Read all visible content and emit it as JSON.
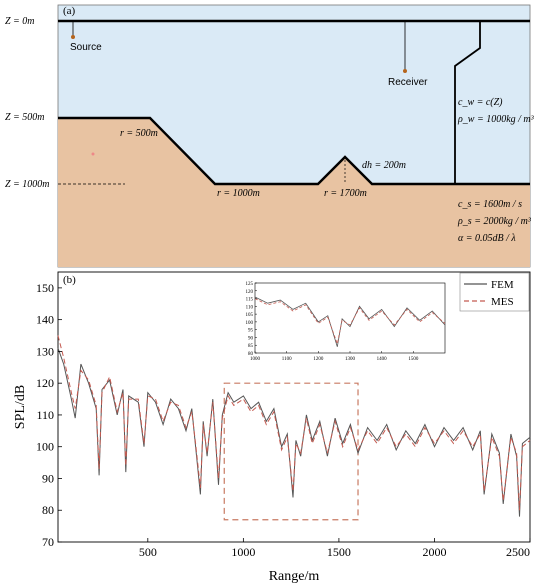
{
  "panel_a": {
    "label": "(a)",
    "depth_labels": [
      "Z = 0m",
      "Z = 500m",
      "Z = 1000m"
    ],
    "source_label": "Source",
    "receiver_label": "Receiver",
    "r_labels": [
      "r = 500m",
      "r = 1000m",
      "r = 1700m"
    ],
    "dh_label": "dh = 200m",
    "water_props": [
      "c_w = c(Z)",
      "ρ_w = 1000kg / m³"
    ],
    "sediment_props": [
      "c_s = 1600m / s",
      "ρ_s = 2000kg / m³",
      "α = 0.05dB / λ"
    ],
    "colors": {
      "water": "#daeaf6",
      "sediment": "#e8c3a2",
      "line": "#000000"
    }
  },
  "chart_data": {
    "type": "line",
    "label": "(b)",
    "title": "",
    "xlabel": "Range/m",
    "ylabel": "SPL/dB",
    "xlim": [
      30,
      2500
    ],
    "ylim": [
      70,
      155
    ],
    "xticks": [
      500,
      1000,
      1500,
      2000,
      2500
    ],
    "yticks": [
      70,
      80,
      90,
      100,
      110,
      120,
      130,
      140,
      150
    ],
    "legend_position": "top-right",
    "series": [
      {
        "name": "FEM",
        "color": "#555555",
        "style": "solid",
        "x": [
          30,
          60,
          100,
          120,
          150,
          190,
          230,
          245,
          260,
          300,
          340,
          370,
          385,
          400,
          450,
          480,
          500,
          540,
          580,
          620,
          660,
          700,
          730,
          750,
          775,
          790,
          810,
          840,
          870,
          890,
          920,
          950,
          1000,
          1040,
          1080,
          1120,
          1160,
          1200,
          1230,
          1260,
          1275,
          1300,
          1330,
          1360,
          1400,
          1440,
          1480,
          1520,
          1560,
          1600,
          1650,
          1700,
          1750,
          1800,
          1850,
          1900,
          1950,
          2000,
          2050,
          2100,
          2150,
          2200,
          2240,
          2260,
          2300,
          2340,
          2360,
          2400,
          2430,
          2445,
          2460,
          2500
        ],
        "y": [
          131,
          126,
          115,
          109,
          126,
          120,
          112,
          91,
          118,
          121,
          110,
          118,
          92,
          116,
          114,
          100,
          117,
          114,
          107,
          115,
          112,
          105,
          112,
          100,
          85,
          108,
          97,
          115,
          88,
          110,
          117,
          114,
          116,
          112,
          114,
          108,
          112,
          100,
          104,
          84,
          102,
          97,
          110,
          102,
          108,
          97,
          109,
          101,
          107,
          98,
          106,
          102,
          107,
          99,
          105,
          101,
          107,
          100,
          106,
          102,
          106,
          99,
          105,
          85,
          104,
          98,
          82,
          104,
          97,
          78,
          101,
          103
        ]
      },
      {
        "name": "MES",
        "color": "#c45a50",
        "style": "dashed",
        "x": [
          30,
          60,
          100,
          120,
          150,
          190,
          230,
          245,
          260,
          300,
          340,
          370,
          385,
          400,
          450,
          480,
          500,
          540,
          580,
          620,
          660,
          700,
          730,
          750,
          775,
          790,
          810,
          840,
          870,
          890,
          920,
          950,
          1000,
          1040,
          1080,
          1120,
          1160,
          1200,
          1230,
          1260,
          1275,
          1300,
          1330,
          1360,
          1400,
          1440,
          1480,
          1520,
          1560,
          1600,
          1650,
          1700,
          1750,
          1800,
          1850,
          1900,
          1950,
          2000,
          2050,
          2100,
          2150,
          2200,
          2240,
          2260,
          2300,
          2340,
          2360,
          2400,
          2430,
          2445,
          2460,
          2500
        ],
        "y": [
          135,
          128,
          117,
          112,
          124,
          121,
          113,
          93,
          117,
          122,
          111,
          117,
          94,
          115,
          115,
          101,
          116,
          115,
          108,
          114,
          113,
          106,
          111,
          101,
          87,
          107,
          98,
          114,
          90,
          109,
          116,
          113,
          115,
          111,
          113,
          107,
          111,
          99,
          103,
          86,
          101,
          98,
          109,
          101,
          107,
          98,
          108,
          100,
          106,
          99,
          105,
          101,
          106,
          100,
          104,
          100,
          106,
          101,
          105,
          101,
          105,
          100,
          104,
          86,
          103,
          97,
          83,
          103,
          98,
          80,
          100,
          102
        ]
      }
    ],
    "inset": {
      "xlim": [
        1000,
        1600
      ],
      "ylim": [
        80,
        125
      ],
      "xticks": [
        1000,
        1100,
        1200,
        1300,
        1400,
        1500
      ],
      "yticks": [
        80,
        85,
        90,
        95,
        100,
        105,
        110,
        115,
        120,
        125
      ],
      "highlight_box_range": {
        "x": [
          900,
          1600
        ],
        "y": [
          77,
          120
        ]
      }
    }
  }
}
